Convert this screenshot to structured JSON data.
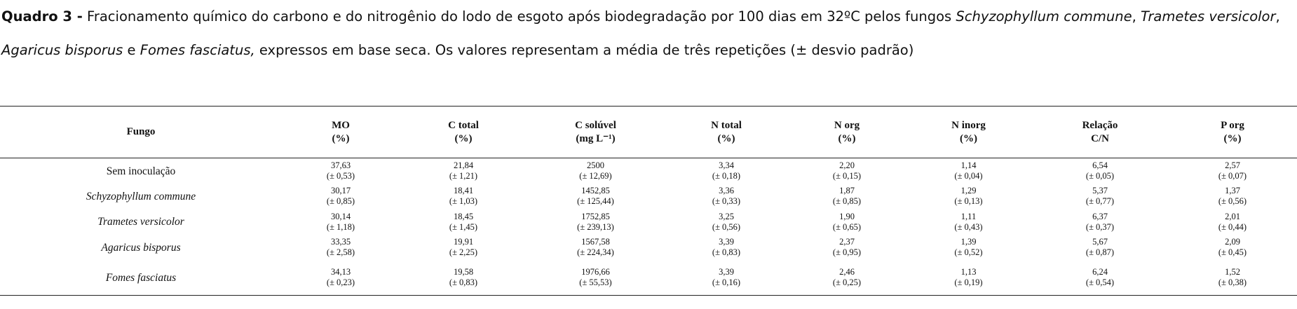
{
  "caption": {
    "label": "Quadro 3 -",
    "parts": [
      " Fracionamento químico do carbono e do nitrogênio do lodo de esgoto após biodegradação por 100 dias em 32ºC pelos fungos ",
      "Schyzophyllum commune",
      ", ",
      "Trametes versicolor",
      ", ",
      "Agaricus bisporus",
      " e ",
      "Fomes fasciatus,",
      " expressos em base seca. Os valores representam a média de três repetições (± desvio padrão)"
    ]
  },
  "table": {
    "header": [
      {
        "name": "Fungo"
      },
      {
        "name": "MO",
        "unit": "(%)"
      },
      {
        "name": "C total",
        "unit": "(%)"
      },
      {
        "name": "C solúvel",
        "unit": "(mg L⁻¹)"
      },
      {
        "name": "N total",
        "unit": "(%)"
      },
      {
        "name": "N org",
        "unit": "(%)"
      },
      {
        "name": "N inorg",
        "unit": "(%)"
      },
      {
        "name": "Relação",
        "unit": "C/N"
      },
      {
        "name": "P org",
        "unit": "(%)"
      }
    ],
    "rows": [
      {
        "fungo": "Sem inoculação",
        "cells": [
          [
            "37,63",
            "(± 0,53)"
          ],
          [
            "21,84",
            "(± 1,21)"
          ],
          [
            "2500",
            "(± 12,69)"
          ],
          [
            "3,34",
            "(± 0,18)"
          ],
          [
            "2,20",
            "(± 0,15)"
          ],
          [
            "1,14",
            "(± 0,04)"
          ],
          [
            "6,54",
            "(± 0,05)"
          ],
          [
            "2,57",
            "(± 0,07)"
          ]
        ]
      },
      {
        "fungo": "Schyzophyllum commune",
        "cells": [
          [
            "30,17",
            "(± 0,85)"
          ],
          [
            "18,41",
            "(± 1,03)"
          ],
          [
            "1452,85",
            "(± 125,44)"
          ],
          [
            "3,36",
            "(± 0,33)"
          ],
          [
            "1,87",
            "(± 0,85)"
          ],
          [
            "1,29",
            "(± 0,13)"
          ],
          [
            "5,37",
            "(± 0,77)"
          ],
          [
            "1,37",
            "(± 0,56)"
          ]
        ]
      },
      {
        "fungo": "Trametes versicolor",
        "cells": [
          [
            "30,14",
            "(± 1,18)"
          ],
          [
            "18,45",
            "(± 1,45)"
          ],
          [
            "1752,85",
            "(± 239,13)"
          ],
          [
            "3,25",
            "(± 0,56)"
          ],
          [
            "1,90",
            "(± 0,65)"
          ],
          [
            "1,11",
            "(± 0,43)"
          ],
          [
            "6,37",
            "(± 0,37)"
          ],
          [
            "2,01",
            "(± 0,44)"
          ]
        ]
      },
      {
        "fungo": "Agaricus bisporus",
        "cells": [
          [
            "33,35",
            "(± 2,58)"
          ],
          [
            "19,91",
            "(± 2,25)"
          ],
          [
            "1567,58",
            "(± 224,34)"
          ],
          [
            "3,39",
            "(± 0,83)"
          ],
          [
            "2,37",
            "(± 0,95)"
          ],
          [
            "1,39",
            "(± 0,52)"
          ],
          [
            "5,67",
            "(± 0,87)"
          ],
          [
            "2,09",
            "(± 0,45)"
          ]
        ]
      },
      {
        "fungo": "Fomes fasciatus",
        "cells": [
          [
            "34,13",
            "(± 0,23)"
          ],
          [
            "19,58",
            "(± 0,83)"
          ],
          [
            "1976,66",
            "(± 55,53)"
          ],
          [
            "3,39",
            "(± 0,16)"
          ],
          [
            "2,46",
            "(± 0,25)"
          ],
          [
            "1,13",
            "(± 0,19)"
          ],
          [
            "6,24",
            "(± 0,54)"
          ],
          [
            "1,52",
            "(± 0,38)"
          ]
        ]
      }
    ]
  }
}
